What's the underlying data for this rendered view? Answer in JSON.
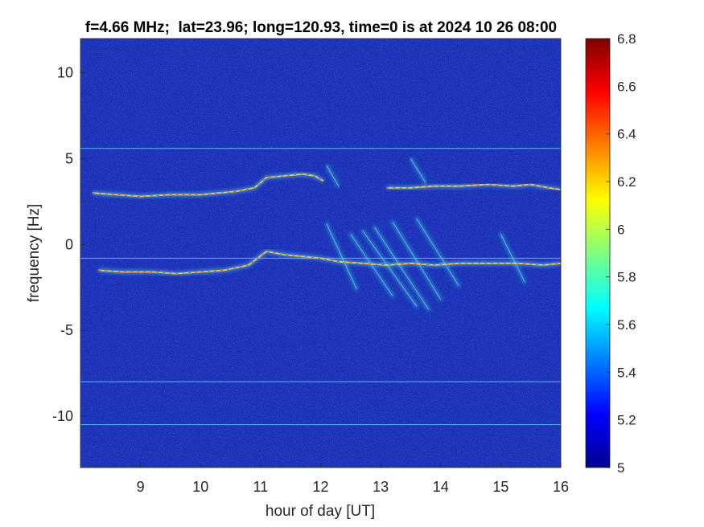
{
  "chart_data": {
    "type": "heatmap",
    "title": "f=4.66 MHz;  lat=23.96; long=120.93, time=0 is at 2024 10 26 08:00",
    "xlabel": "hour of day [UT]",
    "ylabel": "frequency [Hz]",
    "xlim": [
      8,
      16
    ],
    "ylim": [
      -13,
      12
    ],
    "x_ticks": [
      9,
      10,
      11,
      12,
      13,
      14,
      15,
      16
    ],
    "x_tick_labels": [
      "9",
      "10",
      "11",
      "12",
      "13",
      "14",
      "15",
      "16"
    ],
    "y_ticks": [
      -10,
      -5,
      0,
      5,
      10
    ],
    "y_tick_labels": [
      "-10",
      "-5",
      "0",
      "5",
      "10"
    ],
    "colorbar": {
      "range": [
        5,
        6.8
      ],
      "ticks": [
        5,
        5.2,
        5.4,
        5.6,
        5.8,
        6,
        6.2,
        6.4,
        6.6,
        6.8
      ],
      "tick_labels": [
        "5",
        "5.2",
        "5.4",
        "5.6",
        "5.8",
        "6",
        "6.2",
        "6.4",
        "6.6",
        "6.8"
      ],
      "colormap": "jet"
    },
    "background_color": "#1a2fb5",
    "horizontal_lines_hz": [
      5.6,
      -0.8,
      -8.0,
      -10.5
    ],
    "traces": [
      {
        "points": [
          [
            8.2,
            3.0
          ],
          [
            8.6,
            2.9
          ],
          [
            9.0,
            2.8
          ],
          [
            9.5,
            2.9
          ],
          [
            10.0,
            2.9
          ],
          [
            10.6,
            3.1
          ],
          [
            10.9,
            3.3
          ],
          [
            11.1,
            3.9
          ],
          [
            11.4,
            4.0
          ],
          [
            11.7,
            4.1
          ],
          [
            11.9,
            4.0
          ],
          [
            12.05,
            3.7
          ]
        ]
      },
      {
        "points": [
          [
            13.1,
            3.3
          ],
          [
            13.5,
            3.3
          ],
          [
            13.9,
            3.4
          ],
          [
            14.3,
            3.4
          ],
          [
            14.8,
            3.5
          ],
          [
            15.2,
            3.4
          ],
          [
            15.5,
            3.5
          ],
          [
            15.8,
            3.3
          ],
          [
            16.0,
            3.2
          ]
        ]
      },
      {
        "points": [
          [
            8.3,
            -1.5
          ],
          [
            8.7,
            -1.6
          ],
          [
            9.2,
            -1.6
          ],
          [
            9.6,
            -1.7
          ],
          [
            10.0,
            -1.6
          ],
          [
            10.4,
            -1.5
          ],
          [
            10.8,
            -1.2
          ],
          [
            10.95,
            -0.8
          ],
          [
            11.1,
            -0.4
          ],
          [
            11.4,
            -0.6
          ],
          [
            11.7,
            -0.7
          ],
          [
            12.0,
            -0.8
          ],
          [
            12.3,
            -1.0
          ],
          [
            12.7,
            -1.1
          ],
          [
            13.1,
            -1.2
          ],
          [
            13.5,
            -1.1
          ],
          [
            13.9,
            -1.2
          ],
          [
            14.3,
            -1.1
          ],
          [
            14.8,
            -1.1
          ],
          [
            15.3,
            -1.1
          ],
          [
            15.7,
            -1.2
          ],
          [
            16.0,
            -1.1
          ]
        ]
      }
    ],
    "streaks": [
      {
        "x0": 12.7,
        "y0": 0.8,
        "x1": 13.6,
        "y1": -3.6
      },
      {
        "x0": 12.9,
        "y0": 1.0,
        "x1": 13.8,
        "y1": -3.8
      },
      {
        "x0": 12.5,
        "y0": 0.6,
        "x1": 13.2,
        "y1": -3.0
      },
      {
        "x0": 13.2,
        "y0": 1.3,
        "x1": 14.0,
        "y1": -3.2
      },
      {
        "x0": 12.1,
        "y0": 1.2,
        "x1": 12.6,
        "y1": -2.6
      },
      {
        "x0": 13.6,
        "y0": 1.5,
        "x1": 14.3,
        "y1": -2.4
      },
      {
        "x0": 15.0,
        "y0": 0.6,
        "x1": 15.4,
        "y1": -2.2
      },
      {
        "x0": 13.5,
        "y0": 5.0,
        "x1": 13.75,
        "y1": 3.6
      },
      {
        "x0": 12.1,
        "y0": 4.6,
        "x1": 12.3,
        "y1": 3.4
      }
    ]
  }
}
